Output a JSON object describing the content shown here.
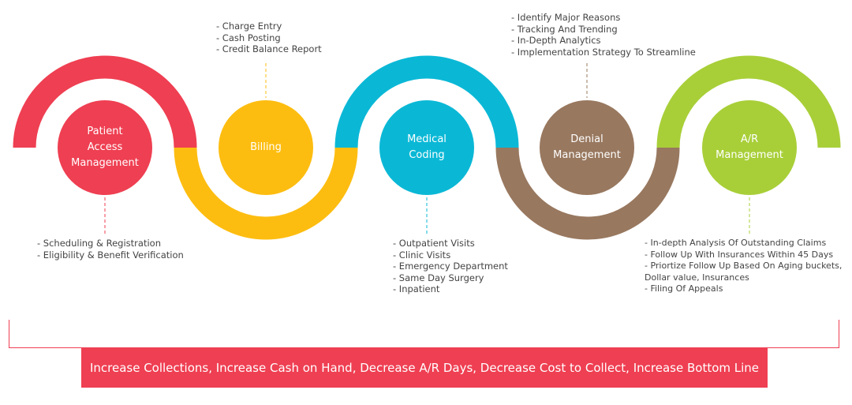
{
  "stages": [
    {
      "id": "patient-access-management",
      "label": "Patient Access Management",
      "color": "#ef3f52",
      "notes": [
        "- Scheduling & Registration",
        "- Eligibility & Benefit Verification"
      ]
    },
    {
      "id": "billing",
      "label": "Billing",
      "color": "#fdbd10",
      "notes": [
        "- Charge Entry",
        "- Cash Posting",
        "- Credit Balance Report"
      ]
    },
    {
      "id": "medical-coding",
      "label": "Medical Coding",
      "color": "#0ab8d6",
      "notes": [
        "- Outpatient Visits",
        "- Clinic Visits",
        "- Emergency Department",
        "- Same Day Surgery",
        "- Inpatient"
      ]
    },
    {
      "id": "denial-management",
      "label": "Denial Management",
      "color": "#98785f",
      "notes": [
        "- Identify Major Reasons",
        "- Tracking And Trending",
        "- In-Depth Analytics",
        "- Implementation Strategy To Streamline"
      ]
    },
    {
      "id": "ar-management",
      "label": "A/R Management",
      "color": "#a8cf38",
      "notes": [
        "- In-depth Analysis Of Outstanding Claims",
        "- Follow Up With Insurances Within 45 Days",
        "- Priortize Follow Up Based On Aging buckets,\n  Dollar value, Insurances",
        "- Filing Of Appeals"
      ]
    }
  ],
  "banner": {
    "text": "Increase Collections, Increase Cash on Hand, Decrease A/R Days, Decrease Cost to Collect, Increase Bottom Line",
    "color": "#ef3f52"
  }
}
